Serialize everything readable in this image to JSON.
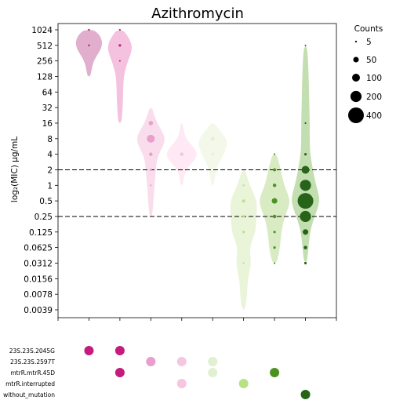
{
  "chart_data": {
    "type": "violin",
    "title": "Azithromycin",
    "ylabel": "log₂(MIC) μg/mL",
    "y_ticks": [
      "0.0039",
      "0.0078",
      "0.0156",
      "0.0312",
      "0.0625",
      "0.125",
      "0.25",
      "0.5",
      "1",
      "2",
      "4",
      "8",
      "16",
      "32",
      "64",
      "128",
      "256",
      "512",
      "1024"
    ],
    "y_tick_values": [
      0.0039,
      0.0078,
      0.0156,
      0.0312,
      0.0625,
      0.125,
      0.25,
      0.5,
      1,
      2,
      4,
      8,
      16,
      32,
      64,
      128,
      256,
      512,
      1024
    ],
    "reference_lines": [
      2,
      0.25
    ],
    "groups": [
      {
        "color": "#d48bb8",
        "dot_color": "#c51b7d",
        "violin_range": [
          128,
          1024
        ],
        "points": [
          {
            "mic": 1024,
            "count": 6
          },
          {
            "mic": 512,
            "count": 6
          }
        ]
      },
      {
        "color": "#f0a6d0",
        "dot_color": "#c51b7d",
        "violin_range": [
          16,
          1024
        ],
        "points": [
          {
            "mic": 1024,
            "count": 5
          },
          {
            "mic": 512,
            "count": 10
          },
          {
            "mic": 256,
            "count": 3
          }
        ]
      },
      {
        "color": "#f7cfe6",
        "dot_color": "#e99ecb",
        "violin_range": [
          0.25,
          32
        ],
        "points": [
          {
            "mic": 16,
            "count": 30
          },
          {
            "mic": 8,
            "count": 100
          },
          {
            "mic": 4,
            "count": 20
          },
          {
            "mic": 2,
            "count": 10
          },
          {
            "mic": 1,
            "count": 5
          }
        ]
      },
      {
        "color": "#fde0ef",
        "dot_color": "#f4c6e0",
        "violin_range": [
          1,
          16
        ],
        "points": [
          {
            "mic": 4,
            "count": 20
          }
        ]
      },
      {
        "color": "#eef5e2",
        "dot_color": "#e0f0d0",
        "violin_range": [
          1,
          16
        ],
        "points": [
          {
            "mic": 8,
            "count": 20
          },
          {
            "mic": 4,
            "count": 10
          }
        ]
      },
      {
        "color": "#dff0c9",
        "dot_color": "#b8e186",
        "violin_range": [
          0.0039,
          2
        ],
        "points": [
          {
            "mic": 1,
            "count": 5
          },
          {
            "mic": 0.5,
            "count": 15
          },
          {
            "mic": 0.25,
            "count": 10
          },
          {
            "mic": 0.125,
            "count": 10
          },
          {
            "mic": 0.0312,
            "count": 5
          }
        ]
      },
      {
        "color": "#c8e3a8",
        "dot_color": "#4d9221",
        "violin_range": [
          0.0312,
          4
        ],
        "points": [
          {
            "mic": 4,
            "count": 5
          },
          {
            "mic": 2,
            "count": 15
          },
          {
            "mic": 1,
            "count": 20
          },
          {
            "mic": 0.5,
            "count": 50
          },
          {
            "mic": 0.25,
            "count": 20
          },
          {
            "mic": 0.125,
            "count": 10
          },
          {
            "mic": 0.0625,
            "count": 10
          },
          {
            "mic": 0.0312,
            "count": 5
          }
        ]
      },
      {
        "color": "#a9d08e",
        "dot_color": "#276419",
        "violin_range": [
          0.0312,
          512
        ],
        "points": [
          {
            "mic": 512,
            "count": 2
          },
          {
            "mic": 16,
            "count": 5
          },
          {
            "mic": 4,
            "count": 10
          },
          {
            "mic": 2,
            "count": 100
          },
          {
            "mic": 1,
            "count": 200
          },
          {
            "mic": 0.5,
            "count": 400
          },
          {
            "mic": 0.25,
            "count": 200
          },
          {
            "mic": 0.125,
            "count": 50
          },
          {
            "mic": 0.0625,
            "count": 20
          },
          {
            "mic": 0.0312,
            "count": 10
          }
        ]
      }
    ],
    "legend": {
      "title": "Counts",
      "placement": "right",
      "entries": [
        {
          "label": "5",
          "count": 5
        },
        {
          "label": "50",
          "count": 50
        },
        {
          "label": "100",
          "count": 100
        },
        {
          "label": "200",
          "count": 200
        },
        {
          "label": "400",
          "count": 400
        }
      ]
    },
    "mutation_labels": [
      "23S.23S.2045G",
      "23S.23S.2597T",
      "mtrR.mtrR.45D",
      "mtrR.interrupted",
      "without_mutation"
    ],
    "mutation_matrix": [
      {
        "mutation": 0,
        "groups": [
          0,
          1
        ]
      },
      {
        "mutation": 1,
        "groups": [
          2,
          3,
          4
        ]
      },
      {
        "mutation": 2,
        "groups": [
          1,
          4,
          6
        ]
      },
      {
        "mutation": 3,
        "groups": [
          3,
          5
        ]
      },
      {
        "mutation": 4,
        "groups": [
          7
        ]
      }
    ]
  }
}
